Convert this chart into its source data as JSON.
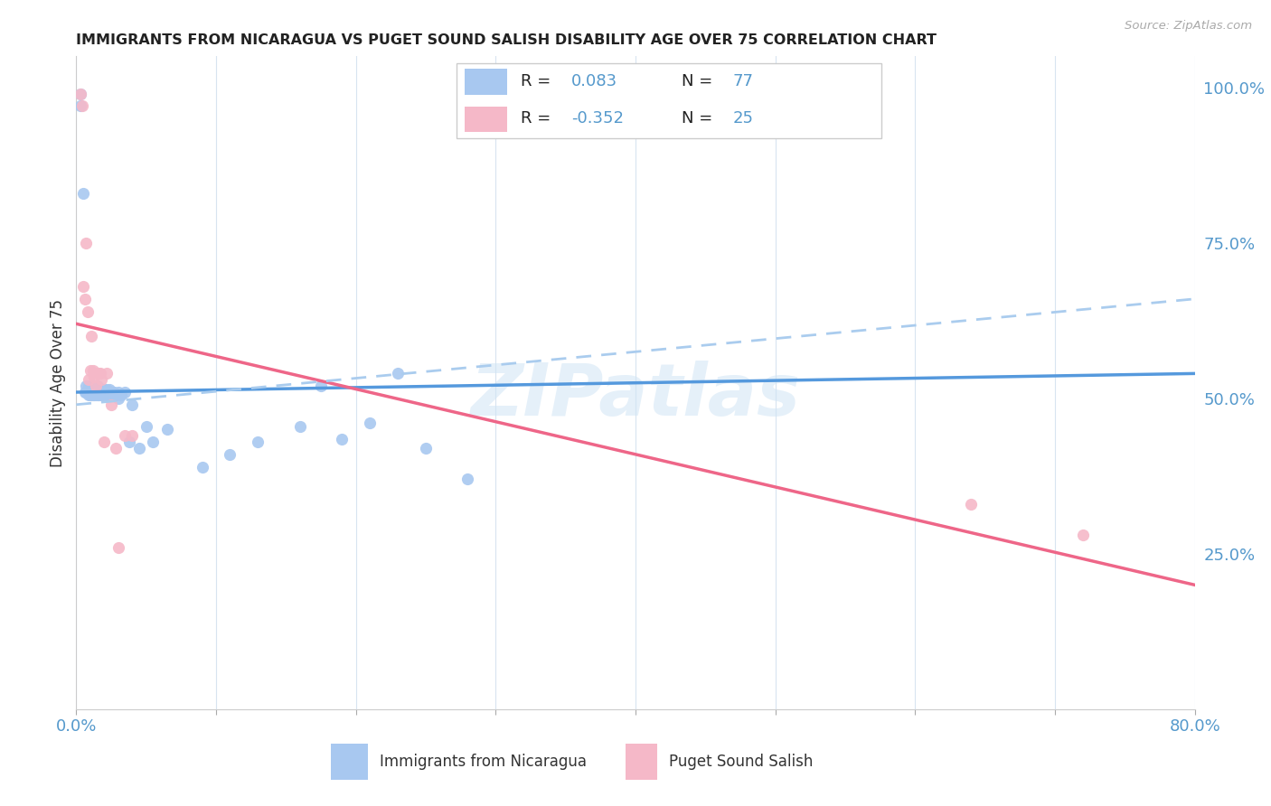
{
  "title": "IMMIGRANTS FROM NICARAGUA VS PUGET SOUND SALISH DISABILITY AGE OVER 75 CORRELATION CHART",
  "source": "Source: ZipAtlas.com",
  "ylabel": "Disability Age Over 75",
  "xlim": [
    0.0,
    0.8
  ],
  "ylim": [
    0.0,
    1.05
  ],
  "blue_color": "#a8c8f0",
  "pink_color": "#f5b8c8",
  "blue_line_color": "#5599dd",
  "pink_line_color": "#ee6688",
  "dashed_line_color": "#aaccee",
  "watermark": "ZIPatlas",
  "blue_scatter_x": [
    0.003,
    0.003,
    0.005,
    0.006,
    0.007,
    0.007,
    0.008,
    0.008,
    0.009,
    0.009,
    0.009,
    0.01,
    0.01,
    0.01,
    0.01,
    0.011,
    0.011,
    0.011,
    0.012,
    0.012,
    0.012,
    0.013,
    0.013,
    0.013,
    0.014,
    0.014,
    0.014,
    0.015,
    0.015,
    0.015,
    0.015,
    0.016,
    0.016,
    0.016,
    0.017,
    0.017,
    0.018,
    0.018,
    0.018,
    0.019,
    0.019,
    0.02,
    0.02,
    0.02,
    0.021,
    0.021,
    0.022,
    0.022,
    0.023,
    0.023,
    0.024,
    0.024,
    0.025,
    0.025,
    0.026,
    0.027,
    0.028,
    0.03,
    0.03,
    0.032,
    0.035,
    0.038,
    0.04,
    0.045,
    0.05,
    0.055,
    0.065,
    0.09,
    0.11,
    0.13,
    0.16,
    0.175,
    0.19,
    0.21,
    0.23,
    0.25,
    0.28
  ],
  "blue_scatter_y": [
    0.99,
    0.97,
    0.83,
    0.51,
    0.51,
    0.52,
    0.515,
    0.51,
    0.505,
    0.515,
    0.52,
    0.51,
    0.52,
    0.505,
    0.515,
    0.51,
    0.505,
    0.52,
    0.51,
    0.505,
    0.515,
    0.51,
    0.505,
    0.52,
    0.505,
    0.51,
    0.515,
    0.51,
    0.505,
    0.515,
    0.52,
    0.505,
    0.51,
    0.515,
    0.505,
    0.51,
    0.51,
    0.505,
    0.515,
    0.505,
    0.51,
    0.51,
    0.505,
    0.515,
    0.51,
    0.505,
    0.51,
    0.515,
    0.51,
    0.505,
    0.51,
    0.515,
    0.505,
    0.51,
    0.51,
    0.51,
    0.505,
    0.51,
    0.5,
    0.505,
    0.51,
    0.43,
    0.49,
    0.42,
    0.455,
    0.43,
    0.45,
    0.39,
    0.41,
    0.43,
    0.455,
    0.52,
    0.435,
    0.46,
    0.54,
    0.42,
    0.37
  ],
  "pink_scatter_x": [
    0.003,
    0.004,
    0.005,
    0.006,
    0.007,
    0.008,
    0.009,
    0.01,
    0.011,
    0.012,
    0.013,
    0.014,
    0.015,
    0.016,
    0.017,
    0.018,
    0.02,
    0.022,
    0.025,
    0.028,
    0.03,
    0.035,
    0.04,
    0.64,
    0.72
  ],
  "pink_scatter_y": [
    0.99,
    0.97,
    0.68,
    0.66,
    0.75,
    0.64,
    0.53,
    0.545,
    0.6,
    0.545,
    0.535,
    0.52,
    0.54,
    0.54,
    0.54,
    0.53,
    0.43,
    0.54,
    0.49,
    0.42,
    0.26,
    0.44,
    0.44,
    0.33,
    0.28
  ],
  "blue_trend_x_start": 0.0,
  "blue_trend_x_end": 0.8,
  "blue_trend_y_start": 0.51,
  "blue_trend_y_end": 0.54,
  "pink_trend_x_start": 0.0,
  "pink_trend_x_end": 0.8,
  "pink_trend_y_start": 0.62,
  "pink_trend_y_end": 0.2,
  "dashed_trend_x_start": 0.0,
  "dashed_trend_x_end": 0.8,
  "dashed_trend_y_start": 0.49,
  "dashed_trend_y_end": 0.66,
  "leg_r1_label": "R = ",
  "leg_r1_val": "0.083",
  "leg_r1_n_label": "N = ",
  "leg_r1_n_val": "77",
  "leg_r2_label": "R = ",
  "leg_r2_val": "-0.352",
  "leg_r2_n_label": "N = ",
  "leg_r2_n_val": "25",
  "leg_bottom_blue": "Immigrants from Nicaragua",
  "leg_bottom_pink": "Puget Sound Salish"
}
